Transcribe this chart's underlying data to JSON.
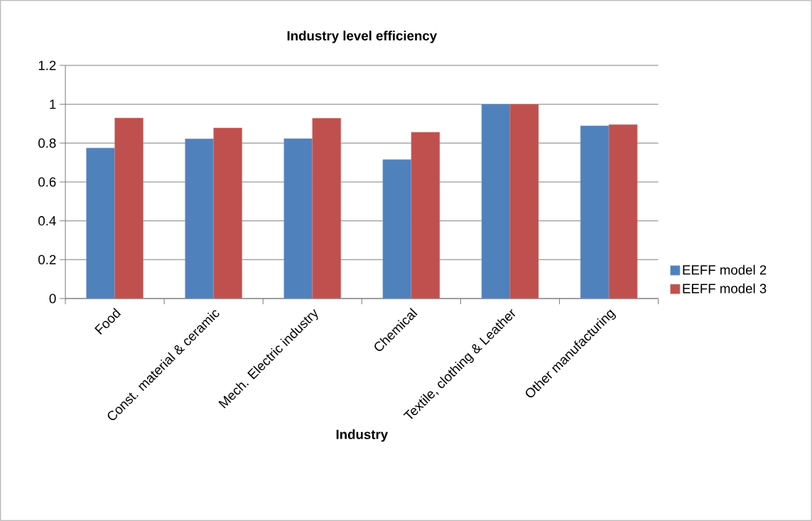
{
  "chart_data": {
    "type": "bar",
    "title": "Industry level efficiency",
    "xlabel": "Industry",
    "categories": [
      "Food",
      "Const. material & ceramic",
      "Mech. Electric industry",
      "Chemical",
      "Textile, clothing & Leather",
      "Other manufacturing"
    ],
    "series": [
      {
        "name": "EEFF model 2",
        "color": "#4f81bd",
        "values": [
          0.775,
          0.822,
          0.823,
          0.715,
          1.0,
          0.889
        ]
      },
      {
        "name": "EEFF model 3",
        "color": "#c0504d",
        "values": [
          0.929,
          0.878,
          0.928,
          0.856,
          1.0,
          0.895
        ]
      }
    ],
    "ylim": [
      0,
      1.2
    ],
    "yticks": [
      0,
      0.2,
      0.4,
      0.6,
      0.8,
      1,
      1.2
    ],
    "grid": "y",
    "legend": "right"
  }
}
